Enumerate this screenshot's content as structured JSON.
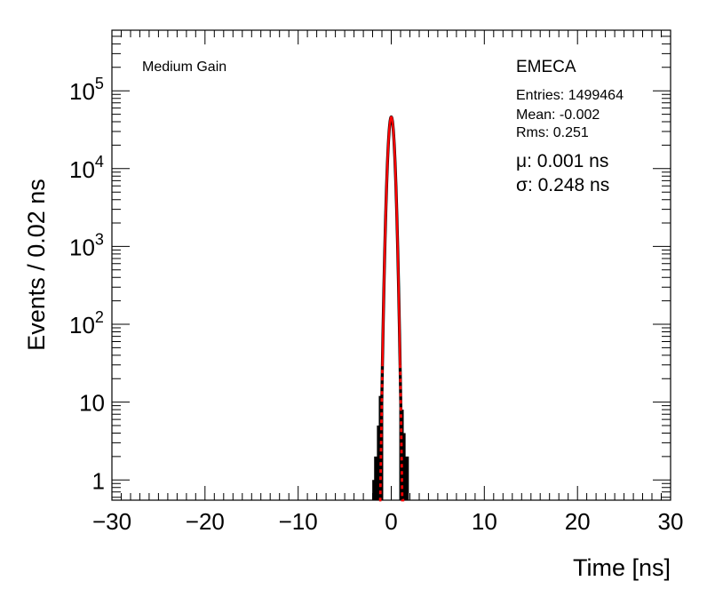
{
  "chart_data": {
    "type": "histogram",
    "title": "",
    "xlabel": "Time [ns]",
    "ylabel": "Events / 0.02 ns",
    "xlim": [
      -30,
      30
    ],
    "ylim": [
      0.55,
      600000
    ],
    "y_scale": "log",
    "x_ticks": [
      -30,
      -20,
      -10,
      0,
      10,
      20,
      30
    ],
    "x_tick_labels": [
      "−30",
      "−20",
      "−10",
      "0",
      "10",
      "20",
      "30"
    ],
    "y_ticks": [
      1,
      10,
      100,
      1000,
      10000,
      100000
    ],
    "y_tick_labels": [
      {
        "base": "1",
        "exp": ""
      },
      {
        "base": "10",
        "exp": ""
      },
      {
        "base": "10",
        "exp": "2"
      },
      {
        "base": "10",
        "exp": "3"
      },
      {
        "base": "10",
        "exp": "4"
      },
      {
        "base": "10",
        "exp": "5"
      }
    ],
    "gain_label": "Medium Gain",
    "detector_label": "EMECA",
    "stats": [
      "Entries: 1499464",
      "Mean: -0.002",
      "Rms: 0.251"
    ],
    "fit_lines": [
      "μ: 0.001 ns",
      "σ: 0.248 ns"
    ],
    "fit": {
      "type": "gaussian",
      "amplitude": 46000,
      "mean": 0.001,
      "sigma": 0.248,
      "fit_range": [
        -1.3,
        1.4
      ]
    },
    "histogram_edge_bins": [
      {
        "x": -1.8,
        "y": 1
      },
      {
        "x": -1.6,
        "y": 2
      },
      {
        "x": -1.3,
        "y": 5
      },
      {
        "x": -1.1,
        "y": 12
      },
      {
        "x": 1.1,
        "y": 8
      },
      {
        "x": 1.3,
        "y": 4
      },
      {
        "x": 1.65,
        "y": 2
      }
    ],
    "colors": {
      "histogram": "#000000",
      "fit": "#ff0000"
    }
  }
}
